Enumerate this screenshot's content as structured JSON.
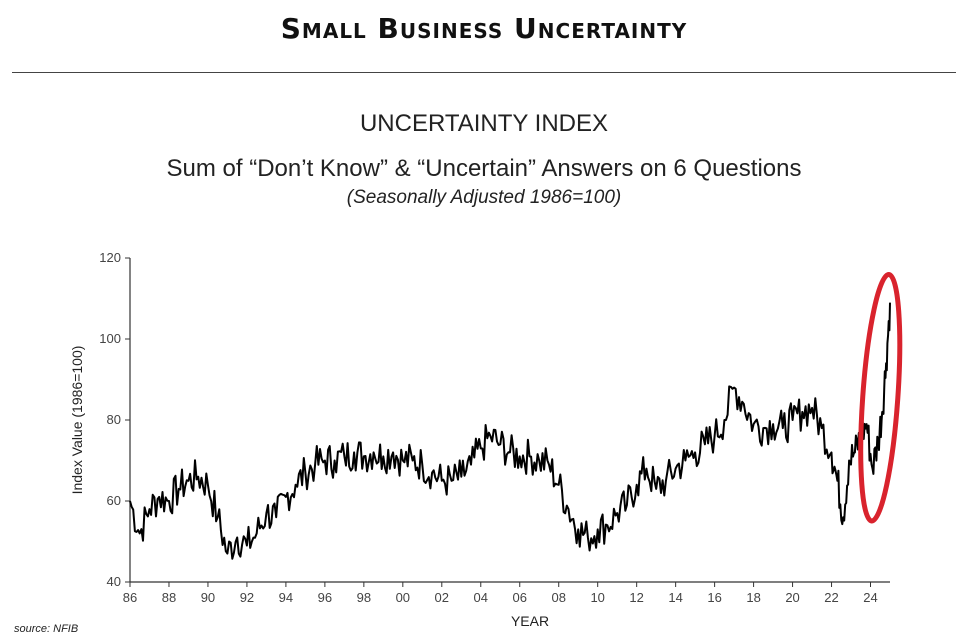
{
  "headline": "Small Business Uncertainty",
  "chart_data": {
    "type": "line",
    "title": "UNCERTAINTY INDEX",
    "subtitle": "Sum of “Don’t Know” & “Uncertain” Answers on 6 Questions",
    "note": "(Seasonally Adjusted 1986=100)",
    "xlabel": "YEAR",
    "ylabel": "Index Value (1986=100)",
    "source": "source: NFIB",
    "xlim": [
      1986,
      2025
    ],
    "ylim": [
      40,
      120
    ],
    "grid": false,
    "x_ticks": [
      {
        "value": 1986,
        "label": "86"
      },
      {
        "value": 1988,
        "label": "88"
      },
      {
        "value": 1990,
        "label": "90"
      },
      {
        "value": 1992,
        "label": "92"
      },
      {
        "value": 1994,
        "label": "94"
      },
      {
        "value": 1996,
        "label": "96"
      },
      {
        "value": 1998,
        "label": "98"
      },
      {
        "value": 2000,
        "label": "00"
      },
      {
        "value": 2002,
        "label": "02"
      },
      {
        "value": 2004,
        "label": "04"
      },
      {
        "value": 2006,
        "label": "06"
      },
      {
        "value": 2008,
        "label": "08"
      },
      {
        "value": 2010,
        "label": "10"
      },
      {
        "value": 2012,
        "label": "12"
      },
      {
        "value": 2014,
        "label": "14"
      },
      {
        "value": 2016,
        "label": "16"
      },
      {
        "value": 2018,
        "label": "18"
      },
      {
        "value": 2020,
        "label": "20"
      },
      {
        "value": 2022,
        "label": "22"
      },
      {
        "value": 2024,
        "label": "24"
      }
    ],
    "y_ticks": [
      {
        "value": 40,
        "label": "40"
      },
      {
        "value": 60,
        "label": "60"
      },
      {
        "value": 80,
        "label": "80"
      },
      {
        "value": 100,
        "label": "100"
      },
      {
        "value": 120,
        "label": "120"
      }
    ],
    "series": [
      {
        "name": "Uncertainty Index",
        "color": "#000000",
        "points": [
          [
            1986,
            60
          ],
          [
            1986.5,
            52
          ],
          [
            1987,
            58
          ],
          [
            1987.5,
            61
          ],
          [
            1988,
            60
          ],
          [
            1988.5,
            63
          ],
          [
            1989,
            65
          ],
          [
            1989.5,
            66
          ],
          [
            1990,
            64
          ],
          [
            1990.5,
            56
          ],
          [
            1991,
            47
          ],
          [
            1991.5,
            51
          ],
          [
            1992,
            49
          ],
          [
            1992.5,
            52
          ],
          [
            1993,
            57
          ],
          [
            1993.5,
            56
          ],
          [
            1994,
            61
          ],
          [
            1994.5,
            64
          ],
          [
            1995,
            67
          ],
          [
            1995.5,
            69
          ],
          [
            1996,
            70
          ],
          [
            1996.5,
            70
          ],
          [
            1997,
            71
          ],
          [
            1997.5,
            72
          ],
          [
            1998,
            71
          ],
          [
            1998.5,
            72
          ],
          [
            1999,
            71
          ],
          [
            1999.5,
            72
          ],
          [
            2000,
            70
          ],
          [
            2000.5,
            70
          ],
          [
            2001,
            69
          ],
          [
            2001.5,
            67
          ],
          [
            2002,
            65
          ],
          [
            2002.5,
            65
          ],
          [
            2003,
            66
          ],
          [
            2003.5,
            69
          ],
          [
            2004,
            73
          ],
          [
            2004.5,
            76
          ],
          [
            2005,
            74
          ],
          [
            2005.5,
            72
          ],
          [
            2006,
            71
          ],
          [
            2006.5,
            71
          ],
          [
            2007,
            70
          ],
          [
            2007.5,
            69
          ],
          [
            2008,
            64
          ],
          [
            2008.5,
            58
          ],
          [
            2009,
            53
          ],
          [
            2009.5,
            51
          ],
          [
            2010,
            53
          ],
          [
            2010.5,
            54
          ],
          [
            2011,
            57
          ],
          [
            2011.5,
            59
          ],
          [
            2012,
            64
          ],
          [
            2012.5,
            68
          ],
          [
            2013,
            63
          ],
          [
            2013.5,
            65
          ],
          [
            2014,
            68
          ],
          [
            2014.5,
            70
          ],
          [
            2015,
            72
          ],
          [
            2015.5,
            74
          ],
          [
            2016,
            76
          ],
          [
            2016.5,
            80
          ],
          [
            2017,
            88
          ],
          [
            2017.5,
            84
          ],
          [
            2018,
            79
          ],
          [
            2018.5,
            78
          ],
          [
            2019,
            79
          ],
          [
            2019.5,
            78
          ],
          [
            2020,
            80
          ],
          [
            2020.5,
            82
          ],
          [
            2021,
            83
          ],
          [
            2021.5,
            78
          ],
          [
            2022,
            72
          ],
          [
            2022.3,
            65
          ],
          [
            2022.6,
            56
          ],
          [
            2022.9,
            70
          ],
          [
            2023.2,
            72
          ],
          [
            2023.5,
            76
          ],
          [
            2023.8,
            79
          ],
          [
            2024.1,
            68
          ],
          [
            2024.4,
            75
          ],
          [
            2024.6,
            82
          ],
          [
            2024.8,
            94
          ],
          [
            2025,
            109
          ]
        ]
      }
    ],
    "annotations": [
      {
        "type": "ellipse",
        "label": "highlight of 2024 spike",
        "color": "#d9232d",
        "x_range": [
          2023.6,
          2025.4
        ],
        "y_range": [
          55,
          116
        ]
      }
    ]
  }
}
